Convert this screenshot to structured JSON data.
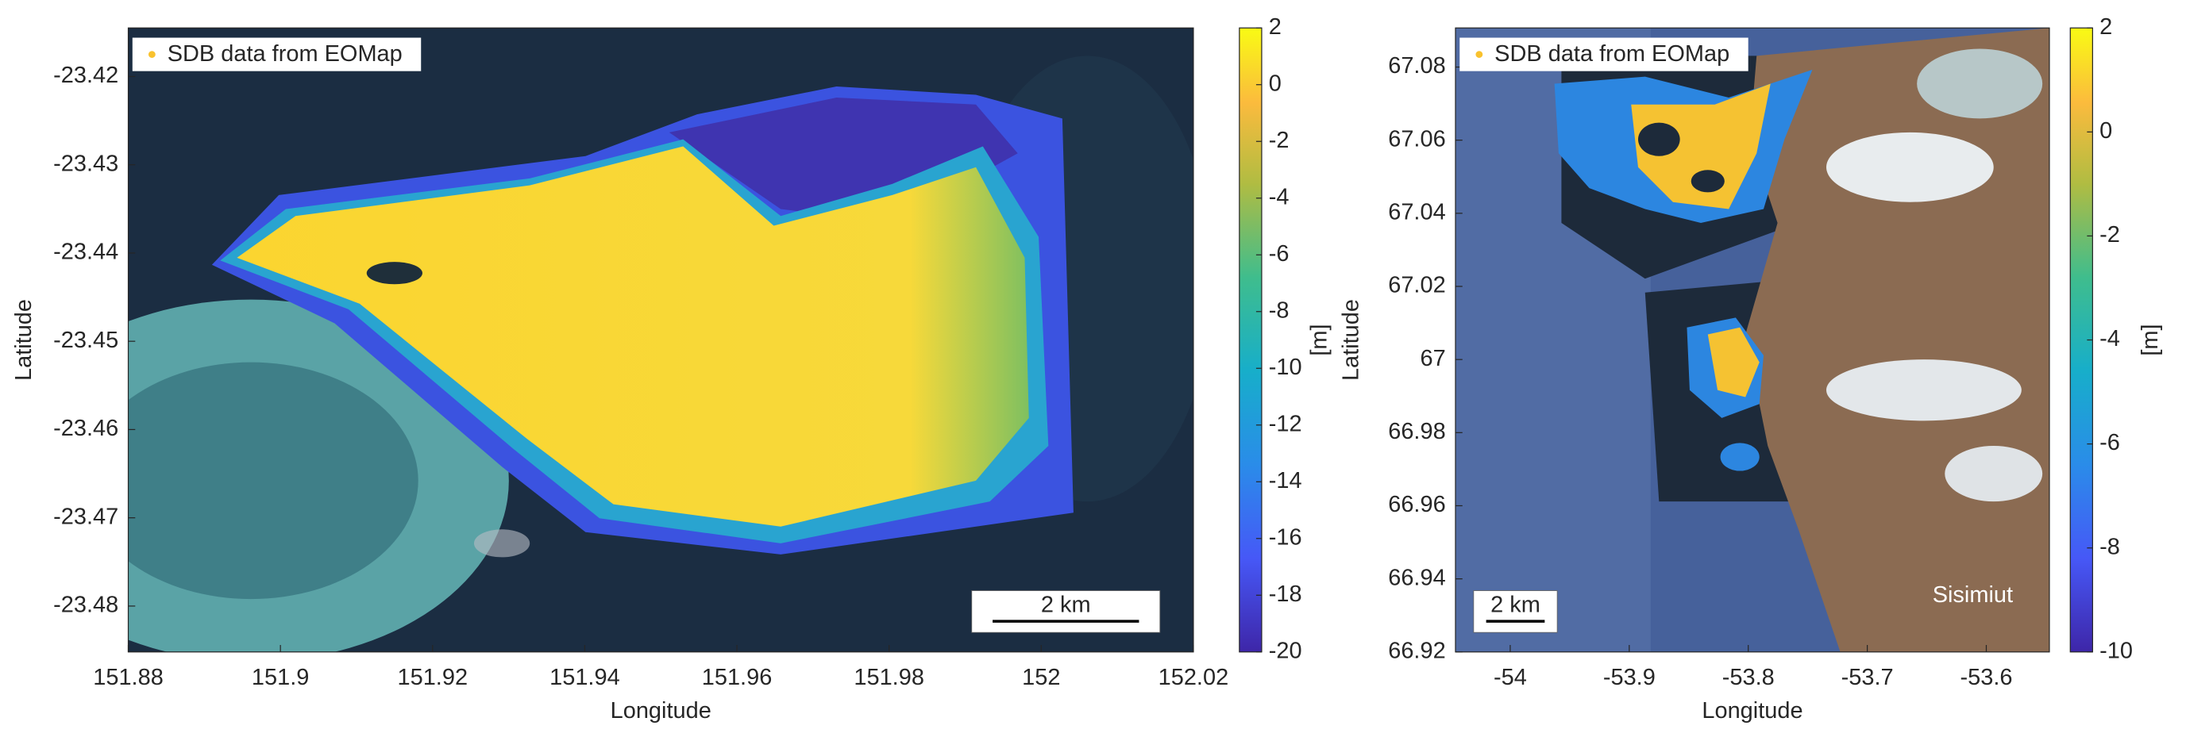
{
  "chart_data": [
    {
      "type": "map",
      "xlabel": "Longitude",
      "ylabel": "Latitude",
      "xlim": [
        151.88,
        152.02
      ],
      "xticks": [
        151.88,
        151.9,
        151.92,
        151.94,
        151.96,
        151.98,
        152,
        152.02
      ],
      "ylim": [
        -23.4852,
        -23.4145
      ],
      "yticks": [
        -23.48,
        -23.47,
        -23.46,
        -23.45,
        -23.44,
        -23.43,
        -23.42
      ],
      "legend": {
        "label": "SDB data from EOMap",
        "color": "#f9c22e",
        "position": "upper left"
      },
      "colorbar": {
        "label": "[m]",
        "lim": [
          -20,
          2
        ],
        "ticks": [
          -20,
          -18,
          -16,
          -14,
          -12,
          -10,
          -8,
          -6,
          -4,
          -2,
          0,
          2
        ]
      },
      "scale_bar": "2 km"
    },
    {
      "type": "map",
      "xlabel": "Longitude",
      "ylabel": "Latitude",
      "xlim": [
        -54.046,
        -53.547
      ],
      "xticks": [
        -54,
        -53.9,
        -53.8,
        -53.7,
        -53.6
      ],
      "ylim": [
        66.92,
        67.0907
      ],
      "yticks": [
        66.92,
        66.94,
        66.96,
        66.98,
        67,
        67.02,
        67.04,
        67.06,
        67.08
      ],
      "legend": {
        "label": "SDB data from EOMap",
        "color": "#f9c22e",
        "position": "upper left"
      },
      "colorbar": {
        "label": "[m]",
        "lim": [
          -10,
          2
        ],
        "ticks": [
          -10,
          -8,
          -6,
          -4,
          -2,
          0,
          2
        ]
      },
      "scale_bar": "2 km",
      "annotations": [
        "Sisimiut"
      ]
    }
  ]
}
